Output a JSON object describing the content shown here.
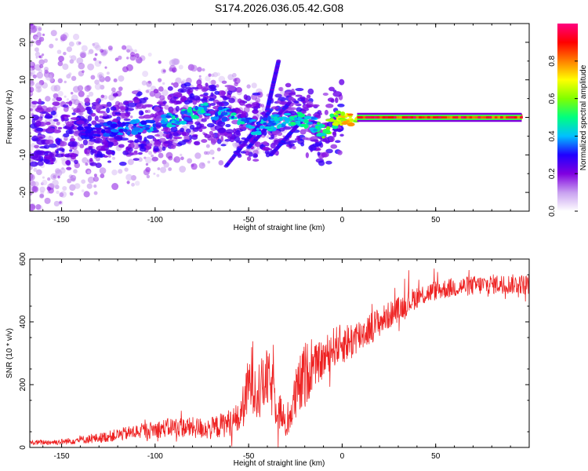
{
  "figure_title": "S174.2026.036.05.42.G08",
  "chart_data": [
    {
      "type": "heatmap",
      "title": "S174.2026.036.05.42.G08",
      "xlabel": "Height of straight line (km)",
      "ylabel": "Frequency (Hz)",
      "xlim": [
        -167,
        100
      ],
      "ylim": [
        -25,
        25
      ],
      "x_ticks": [
        -150,
        -100,
        -50,
        0,
        50
      ],
      "y_ticks": [
        -20,
        -10,
        0,
        10,
        20
      ],
      "colorbar": {
        "label": "Normalized spectral amplitude",
        "range": [
          0,
          1
        ],
        "ticks": [
          "0.0",
          "0.2",
          "0.4",
          "0.6",
          "0.8"
        ],
        "colormap": [
          "#ffffff",
          "#c8a0f0",
          "#8000e0",
          "#2000ff",
          "#00c0ff",
          "#00ff80",
          "#80ff00",
          "#ffff00",
          "#ff8000",
          "#ff0000",
          "#ff0080"
        ]
      },
      "ridge": {
        "x": [
          -140,
          -120,
          -100,
          -85,
          -75,
          -65,
          -55,
          -45,
          -35,
          -25,
          -15,
          -10,
          -5,
          0,
          5,
          10,
          30,
          60,
          95
        ],
        "y": [
          -4,
          -3,
          -2,
          0,
          2,
          1,
          -1,
          -3,
          -1,
          0,
          -2,
          -4,
          -1,
          0,
          -1,
          0,
          0,
          0,
          0
        ],
        "amplitude": [
          0.3,
          0.35,
          0.4,
          0.45,
          0.45,
          0.4,
          0.45,
          0.4,
          0.45,
          0.5,
          0.45,
          0.55,
          0.6,
          0.7,
          0.75,
          0.8,
          0.85,
          0.85,
          0.85
        ]
      }
    },
    {
      "type": "line",
      "xlabel": "Height of straight line (km)",
      "ylabel": "SNR (10 * v/v)",
      "xlim": [
        -167,
        100
      ],
      "ylim": [
        0,
        600
      ],
      "x_ticks": [
        -150,
        -100,
        -50,
        0,
        50
      ],
      "y_ticks": [
        0,
        200,
        400,
        600
      ],
      "color": "#ee2222",
      "series": [
        {
          "name": "SNR",
          "envelope_x": [
            -167,
            -150,
            -130,
            -110,
            -90,
            -70,
            -55,
            -48,
            -44,
            -40,
            -35,
            -30,
            -25,
            -20,
            -15,
            -10,
            -5,
            0,
            5,
            10,
            20,
            30,
            40,
            50,
            60,
            70,
            80,
            90,
            100
          ],
          "envelope_y": [
            15,
            18,
            30,
            50,
            65,
            60,
            90,
            230,
            180,
            220,
            150,
            60,
            160,
            230,
            260,
            280,
            320,
            330,
            340,
            360,
            400,
            440,
            480,
            500,
            510,
            515,
            520,
            520,
            520
          ],
          "noise_amp": [
            10,
            12,
            20,
            30,
            40,
            45,
            60,
            150,
            120,
            120,
            110,
            40,
            110,
            140,
            80,
            80,
            80,
            80,
            80,
            70,
            60,
            50,
            45,
            40,
            40,
            40,
            40,
            40,
            40
          ]
        }
      ]
    }
  ]
}
